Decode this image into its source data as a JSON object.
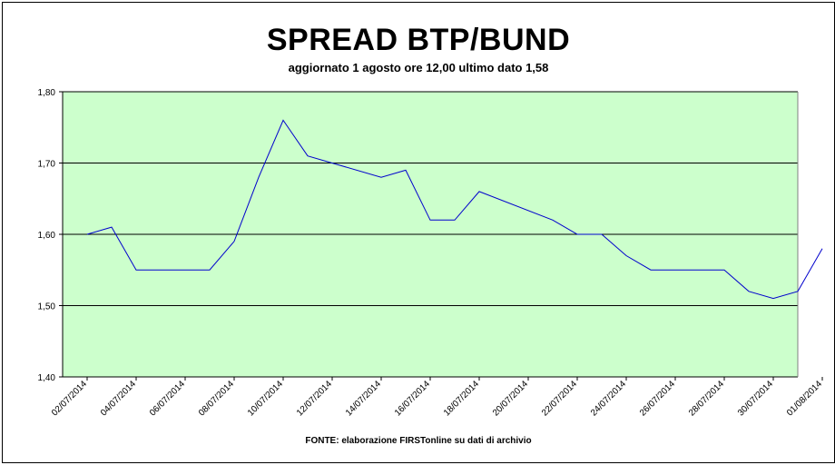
{
  "chart_data": {
    "type": "line",
    "title": "SPREAD BTP/BUND",
    "subtitle": "aggiornato 1 agosto ore 12,00 ultimo dato 1,58",
    "source": "FONTE: elaborazione FIRSTonline su dati di archivio",
    "xlabel": "",
    "ylabel": "",
    "ylim": [
      1.4,
      1.8
    ],
    "y_ticks": [
      "1,80",
      "1,70",
      "1,60",
      "1,50",
      "1,40"
    ],
    "x_ticks": [
      "02/07/2014",
      "04/07/2014",
      "06/07/2014",
      "08/07/2014",
      "10/07/2014",
      "12/07/2014",
      "14/07/2014",
      "16/07/2014",
      "18/07/2014",
      "20/07/2014",
      "22/07/2014",
      "24/07/2014",
      "26/07/2014",
      "28/07/2014",
      "30/07/2014",
      "01/08/2014"
    ],
    "grid": "horizontal",
    "plot_background": "#ccffcc",
    "line_color": "#0000cc",
    "series": [
      {
        "x": [
          "02/07/2014",
          "03/07/2014",
          "04/07/2014",
          "07/07/2014",
          "08/07/2014",
          "09/07/2014",
          "10/07/2014",
          "11/07/2014",
          "14/07/2014",
          "15/07/2014",
          "16/07/2014",
          "17/07/2014",
          "18/07/2014",
          "21/07/2014",
          "22/07/2014",
          "23/07/2014",
          "24/07/2014",
          "25/07/2014",
          "28/07/2014",
          "29/07/2014",
          "30/07/2014",
          "31/07/2014",
          "01/08/2014"
        ],
        "values": [
          1.6,
          1.61,
          1.55,
          1.55,
          1.59,
          1.68,
          1.76,
          1.71,
          1.68,
          1.69,
          1.62,
          1.62,
          1.66,
          1.62,
          1.6,
          1.6,
          1.57,
          1.55,
          1.55,
          1.52,
          1.51,
          1.52,
          1.58
        ]
      }
    ]
  }
}
